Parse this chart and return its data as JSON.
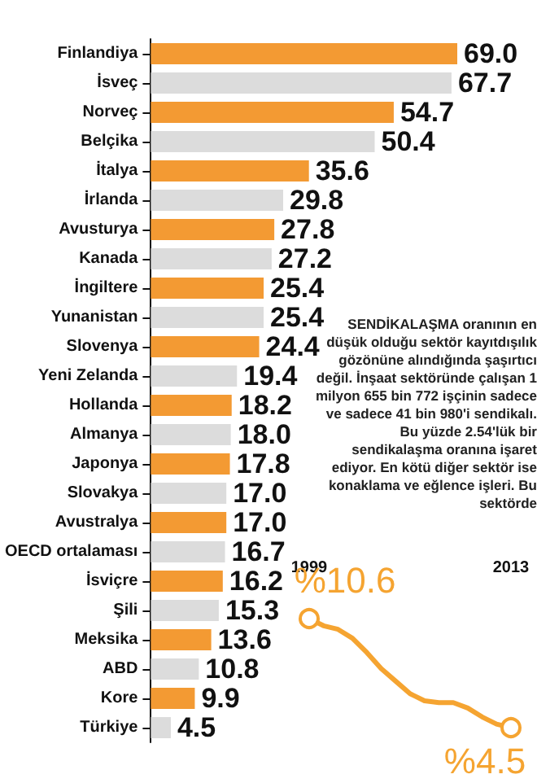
{
  "chart_data": [
    {
      "type": "bar",
      "orientation": "horizontal",
      "categories": [
        "Finlandiya",
        "İsveç",
        "Norveç",
        "Belçika",
        "İtalya",
        "İrlanda",
        "Avusturya",
        "Kanada",
        "İngiltere",
        "Yunanistan",
        "Slovenya",
        "Yeni Zelanda",
        "Hollanda",
        "Almanya",
        "Japonya",
        "Slovakya",
        "Avustralya",
        "OECD ortalaması",
        "İsviçre",
        "Şili",
        "Meksika",
        "ABD",
        "Kore",
        "Türkiye"
      ],
      "values": [
        69.0,
        67.7,
        54.7,
        50.4,
        35.6,
        29.8,
        27.8,
        27.2,
        25.4,
        25.4,
        24.4,
        19.4,
        18.2,
        18.0,
        17.8,
        17.0,
        17.0,
        16.7,
        16.2,
        15.3,
        13.6,
        10.8,
        9.9,
        4.5
      ],
      "value_labels": [
        "69.0",
        "67.7",
        "54.7",
        "50.4",
        "35.6",
        "29.8",
        "27.8",
        "27.2",
        "25.4",
        "25.4",
        "24.4",
        "19.4",
        "18.2",
        "18.0",
        "17.8",
        "17.0",
        "17.0",
        "16.7",
        "16.2",
        "15.3",
        "13.6",
        "10.8",
        "9.9",
        "4.5"
      ],
      "colors": [
        "#f39a33",
        "#dcdcdc",
        "#f39a33",
        "#dcdcdc",
        "#f39a33",
        "#dcdcdc",
        "#f39a33",
        "#dcdcdc",
        "#f39a33",
        "#dcdcdc",
        "#f39a33",
        "#dcdcdc",
        "#f39a33",
        "#dcdcdc",
        "#f39a33",
        "#dcdcdc",
        "#f39a33",
        "#dcdcdc",
        "#f39a33",
        "#dcdcdc",
        "#f39a33",
        "#dcdcdc",
        "#f39a33",
        "#dcdcdc"
      ],
      "annotations": [
        "SENDİKALAŞMA oranının en düşük olduğu sektör kayıtdışılık gözönüne alındığında şaşırtıcı değil. İnşaat sektöründe çalışan 1 milyon 655 bin 772 işçinin sadece ve sadece 41 bin 980'i sendikalı. Bu yüzde 2.54'lük bir sendikalaşma oranına işaret ediyor. En kötü diğer sektör ise konaklama ve eğlence işleri. Bu sektörde"
      ]
    },
    {
      "type": "line",
      "color": "#f5a431",
      "categories": [
        "1999",
        null,
        null,
        null,
        null,
        null,
        null,
        null,
        null,
        null,
        null,
        null,
        null,
        null,
        "2013"
      ],
      "values": [
        10.6,
        10.2,
        10.0,
        9.5,
        8.7,
        7.8,
        7.1,
        6.4,
        6.0,
        5.9,
        5.9,
        5.6,
        5.1,
        4.7,
        4.5
      ],
      "value_labels": [
        "%10.6",
        null,
        null,
        null,
        null,
        null,
        null,
        null,
        null,
        null,
        null,
        null,
        null,
        null,
        "%4.5"
      ]
    }
  ]
}
